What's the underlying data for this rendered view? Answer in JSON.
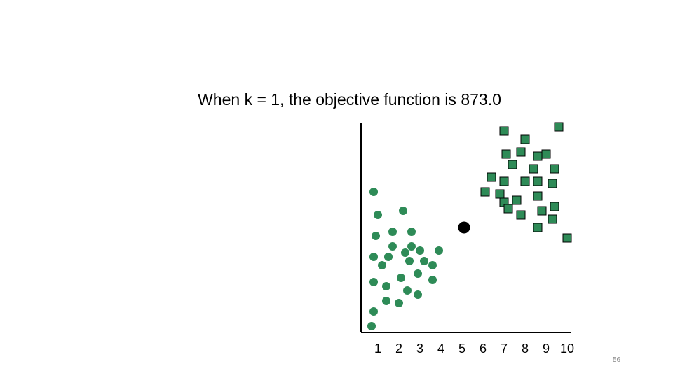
{
  "slide": {
    "title": "When k = 1, the objective function is 873.0",
    "number": "56"
  },
  "chart_data": {
    "type": "scatter",
    "title": "When k = 1, the objective function is 873.0",
    "xlabel": "",
    "ylabel": "",
    "xlim": [
      0.2,
      10.2
    ],
    "ylim": [
      0,
      10
    ],
    "x_ticks": [
      1,
      2,
      3,
      4,
      5,
      6,
      7,
      8,
      9,
      10
    ],
    "y_ticks": [],
    "grid": false,
    "legend": "none",
    "series": [
      {
        "marker": "circle",
        "color": "#2e8b57",
        "points": [
          [
            0.7,
            0.3
          ],
          [
            0.8,
            1.0
          ],
          [
            1.4,
            1.5
          ],
          [
            2.0,
            1.4
          ],
          [
            2.4,
            2.0
          ],
          [
            2.9,
            1.8
          ],
          [
            0.8,
            2.4
          ],
          [
            1.4,
            2.2
          ],
          [
            2.1,
            2.6
          ],
          [
            2.9,
            2.8
          ],
          [
            3.6,
            2.5
          ],
          [
            1.2,
            3.2
          ],
          [
            0.8,
            3.6
          ],
          [
            1.5,
            3.6
          ],
          [
            2.5,
            3.4
          ],
          [
            3.2,
            3.4
          ],
          [
            3.6,
            3.2
          ],
          [
            2.3,
            3.8
          ],
          [
            3.0,
            3.9
          ],
          [
            1.7,
            4.1
          ],
          [
            2.6,
            4.1
          ],
          [
            3.9,
            3.9
          ],
          [
            0.9,
            4.6
          ],
          [
            1.7,
            4.8
          ],
          [
            2.6,
            4.8
          ],
          [
            1.0,
            5.6
          ],
          [
            2.2,
            5.8
          ],
          [
            0.8,
            6.7
          ]
        ]
      },
      {
        "marker": "square",
        "color": "#2e8b57",
        "points": [
          [
            6.1,
            6.7
          ],
          [
            6.8,
            6.6
          ],
          [
            6.4,
            7.4
          ],
          [
            7.0,
            7.2
          ],
          [
            7.6,
            6.3
          ],
          [
            7.0,
            6.2
          ],
          [
            8.0,
            7.2
          ],
          [
            8.6,
            6.5
          ],
          [
            8.6,
            7.2
          ],
          [
            9.3,
            7.1
          ],
          [
            8.4,
            7.8
          ],
          [
            9.4,
            7.8
          ],
          [
            7.4,
            8.0
          ],
          [
            7.1,
            8.5
          ],
          [
            7.8,
            8.6
          ],
          [
            8.6,
            8.4
          ],
          [
            9.0,
            8.5
          ],
          [
            8.0,
            9.2
          ],
          [
            7.0,
            9.6
          ],
          [
            9.6,
            9.8
          ],
          [
            7.2,
            5.9
          ],
          [
            7.8,
            5.6
          ],
          [
            8.8,
            5.8
          ],
          [
            9.4,
            6.0
          ],
          [
            9.3,
            5.4
          ],
          [
            8.6,
            5.0
          ],
          [
            10.0,
            4.5
          ]
        ]
      },
      {
        "marker": "circle",
        "color": "#000000",
        "points": [
          [
            5.1,
            5.0
          ]
        ]
      }
    ]
  }
}
